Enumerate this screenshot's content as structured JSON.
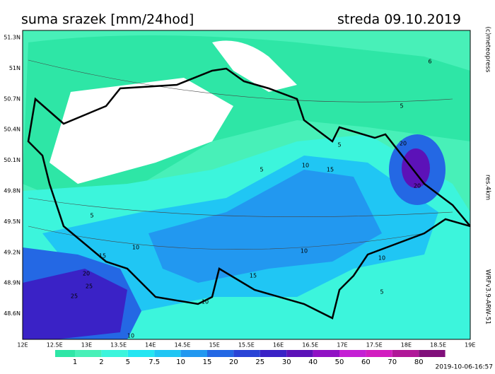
{
  "header": {
    "title": "suma srazek [mm/24hod]",
    "date": "streda 09.10.2019"
  },
  "axes": {
    "lat_labels": [
      "51.3N",
      "51N",
      "50.7N",
      "50.4N",
      "50.1N",
      "49.8N",
      "49.5N",
      "49.2N",
      "48.9N",
      "48.6N"
    ],
    "lon_labels": [
      "12E",
      "12.5E",
      "13E",
      "13.5E",
      "14E",
      "14.5E",
      "15E",
      "15.5E",
      "16E",
      "16.5E",
      "17E",
      "17.5E",
      "18E",
      "18.5E",
      "19E"
    ]
  },
  "legend": {
    "labels": [
      1,
      2,
      5,
      7.5,
      10,
      15,
      20,
      25,
      30,
      40,
      50,
      60,
      70,
      80
    ],
    "colors": [
      "#2ee6a6",
      "#48f0b8",
      "#3cf5dc",
      "#24e6f2",
      "#20c6f4",
      "#2298f0",
      "#2468e4",
      "#2a44d6",
      "#3a22c6",
      "#5c12b8",
      "#9012c4",
      "#c420d4",
      "#d21ec0",
      "#b01898",
      "#80107a"
    ]
  },
  "side": {
    "copyright": "(c)meteopress",
    "resolution": "res.4km",
    "model": "WRFv3.9-ARW-51"
  },
  "timestamp": "2019-10-06-16:57",
  "contour_labels": [
    "6",
    "5",
    "5",
    "10",
    "20",
    "20",
    "15",
    "5",
    "10",
    "10",
    "10",
    "15",
    "10",
    "5",
    "25",
    "20",
    "25",
    "15",
    "10",
    "5"
  ]
}
